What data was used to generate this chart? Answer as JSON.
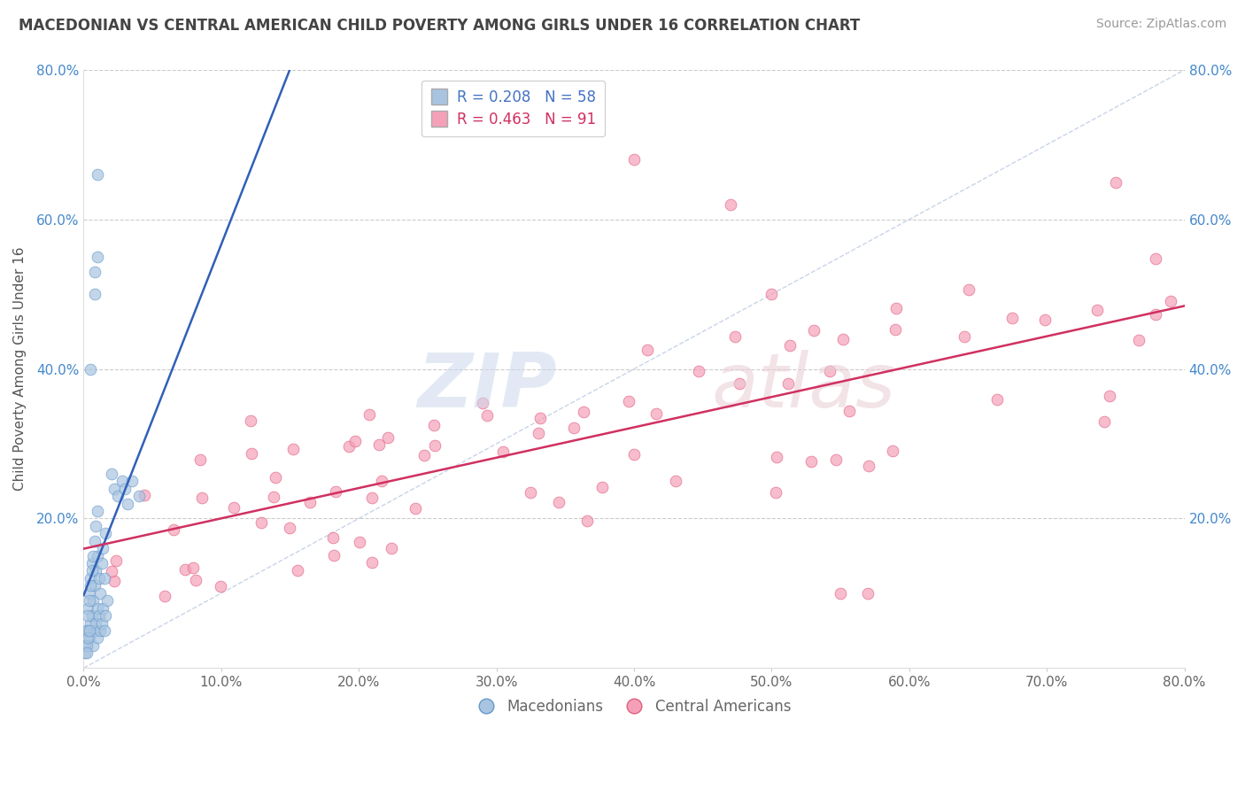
{
  "title": "MACEDONIAN VS CENTRAL AMERICAN CHILD POVERTY AMONG GIRLS UNDER 16 CORRELATION CHART",
  "source": "Source: ZipAtlas.com",
  "ylabel": "Child Poverty Among Girls Under 16",
  "xlim": [
    0.0,
    0.8
  ],
  "ylim": [
    0.0,
    0.8
  ],
  "xtick_labels": [
    "0.0%",
    "10.0%",
    "20.0%",
    "30.0%",
    "40.0%",
    "50.0%",
    "60.0%",
    "70.0%",
    "80.0%"
  ],
  "xtick_values": [
    0.0,
    0.1,
    0.2,
    0.3,
    0.4,
    0.5,
    0.6,
    0.7,
    0.8
  ],
  "ytick_left_labels": [
    "",
    "20.0%",
    "40.0%",
    "60.0%",
    "80.0%"
  ],
  "ytick_values": [
    0.0,
    0.2,
    0.4,
    0.6,
    0.8
  ],
  "ytick_right_labels": [
    "80.0%",
    "60.0%",
    "40.0%",
    "20.0%",
    ""
  ],
  "ytick_right_values": [
    0.8,
    0.6,
    0.4,
    0.2,
    0.0
  ],
  "macedonian_R": 0.208,
  "macedonian_N": 58,
  "central_american_R": 0.463,
  "central_american_N": 91,
  "macedonian_color": "#a8c4e0",
  "macedonian_edge_color": "#6699cc",
  "central_american_color": "#f4a0b8",
  "central_american_edge_color": "#e06080",
  "macedonian_line_color": "#3060b8",
  "central_american_line_color": "#d03060",
  "diagonal_color": "#c8d4e8",
  "background_color": "#ffffff",
  "grid_color": "#cccccc",
  "title_color": "#444444",
  "source_color": "#999999",
  "ylabel_color": "#555555",
  "tick_label_color": "#666666",
  "right_tick_color": "#4488cc",
  "legend_text_color_mac": "#4472c4",
  "legend_text_color_ca": "#d03060",
  "bottom_legend_color": "#666666"
}
